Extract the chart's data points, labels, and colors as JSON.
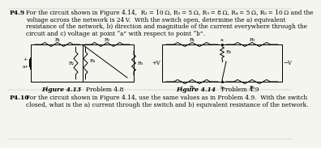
{
  "title_p49": "P4.9",
  "body_p49_line1": "For the circuit shown in Figure 4.14,  R₁ = 10 Ω, R₂ = 5 Ω, R₃ = 8 Ω, R₄ = 5 Ω, R₅ = 10 Ω and the",
  "body_p49_line2": "voltage across the network is 24 V.  With the switch open, determine the a) equivalent",
  "body_p49_line3": "resistance of the network, b) direction and magnitude of the current everywhere through the",
  "body_p49_line4": "circuit and c) voltage at point “a” with respect to point “b”.",
  "fig413_caption": "Figure 4.13",
  "fig413_prob": "Problem 4.8",
  "fig414_caption": "Figure 4.14",
  "fig414_prob": "Problem 4.9",
  "title_p410": "P4.10",
  "body_p410_line1": "For the circuit shown in Figure 4.14, use the same values as in Problem 4.9.  With the switch",
  "body_p410_line2": "closed, what is the a) current through the switch and b) equivalent resistance of the network.",
  "bg_color": "#f5f5f0",
  "text_color": "#000000",
  "fs_problem": 5.5,
  "fs_body": 5.3,
  "fs_caption": 5.5,
  "fs_circuit": 4.5
}
